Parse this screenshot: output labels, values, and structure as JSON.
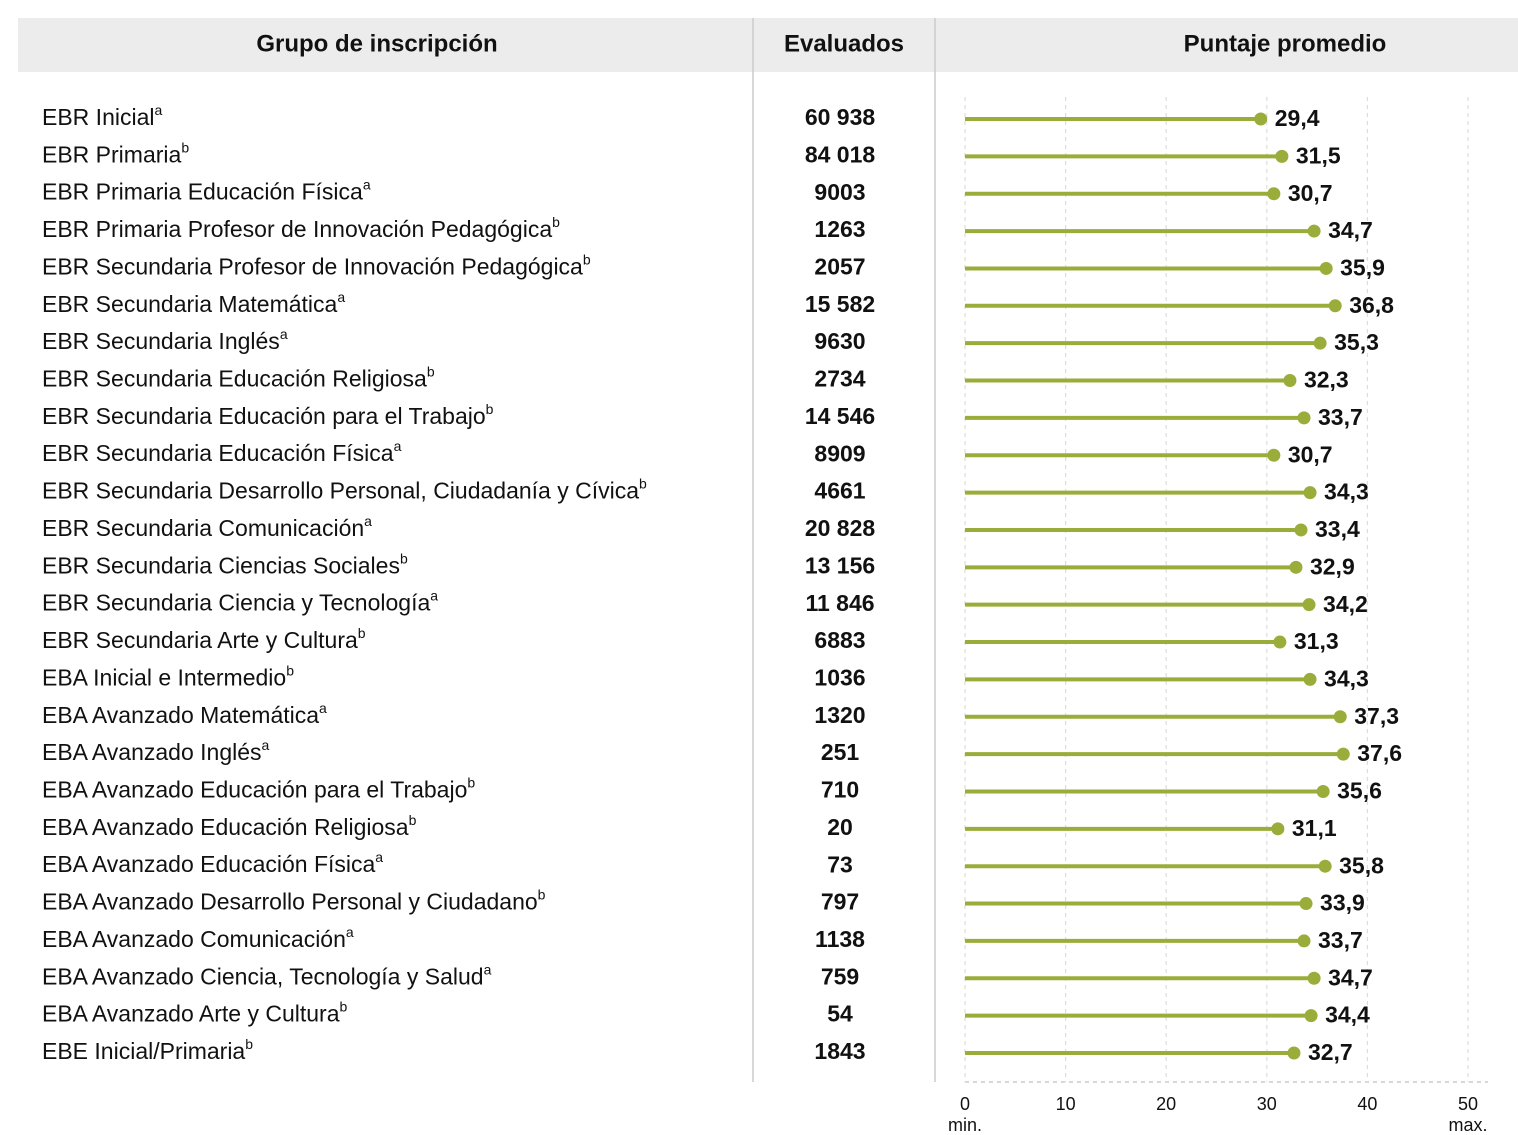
{
  "chart_data": {
    "type": "lollipop",
    "headers": [
      "Grupo de inscripción",
      "Evaluados",
      "Puntaje promedio"
    ],
    "categories": [
      "EBR Inicial",
      "EBR Primaria",
      "EBR Primaria Educación Física",
      "EBR Primaria Profesor de Innovación Pedagógica",
      "EBR Secundaria Profesor de Innovación Pedagógica",
      "EBR Secundaria Matemática",
      "EBR Secundaria Inglés",
      "EBR Secundaria Educación Religiosa",
      "EBR Secundaria Educación para el Trabajo",
      "EBR Secundaria Educación Física",
      "EBR Secundaria Desarrollo Personal, Ciudadanía y Cívica",
      "EBR Secundaria Comunicación",
      "EBR Secundaria Ciencias Sociales",
      "EBR Secundaria Ciencia y Tecnología",
      "EBR Secundaria Arte y Cultura",
      "EBA Inicial e Intermedio",
      "EBA Avanzado Matemática",
      "EBA Avanzado Inglés",
      "EBA Avanzado Educación para el Trabajo",
      "EBA Avanzado Educación Religiosa",
      "EBA Avanzado Educación Física",
      "EBA Avanzado Desarrollo Personal y Ciudadano",
      "EBA Avanzado Comunicación",
      "EBA Avanzado Ciencia, Tecnología y Salud",
      "EBA Avanzado Arte y Cultura",
      "EBE Inicial/Primaria"
    ],
    "notes": [
      "a",
      "b",
      "a",
      "b",
      "b",
      "a",
      "a",
      "b",
      "b",
      "a",
      "b",
      "a",
      "b",
      "a",
      "b",
      "b",
      "a",
      "a",
      "b",
      "b",
      "a",
      "b",
      "a",
      "a",
      "b",
      "b"
    ],
    "evaluados": [
      "60 938",
      "84 018",
      "9003",
      "1263",
      "2057",
      "15 582",
      "9630",
      "2734",
      "14 546",
      "8909",
      "4661",
      "20 828",
      "13 156",
      "11 846",
      "6883",
      "1036",
      "1320",
      "251",
      "710",
      "20",
      "73",
      "797",
      "1138",
      "759",
      "54",
      "1843"
    ],
    "values": [
      29.4,
      31.5,
      30.7,
      34.7,
      35.9,
      36.8,
      35.3,
      32.3,
      33.7,
      30.7,
      34.3,
      33.4,
      32.9,
      34.2,
      31.3,
      34.3,
      37.3,
      37.6,
      35.6,
      31.1,
      35.8,
      33.9,
      33.7,
      34.7,
      34.4,
      32.7
    ],
    "value_labels": [
      "29,4",
      "31,5",
      "30,7",
      "34,7",
      "35,9",
      "36,8",
      "35,3",
      "32,3",
      "33,7",
      "30,7",
      "34,3",
      "33,4",
      "32,9",
      "34,2",
      "31,3",
      "34,3",
      "37,3",
      "37,6",
      "35,6",
      "31,1",
      "35,8",
      "33,9",
      "33,7",
      "34,7",
      "34,4",
      "32,7"
    ],
    "color": "#9aad3a",
    "xlim": [
      0,
      50
    ],
    "xticks": [
      0,
      10,
      20,
      30,
      40,
      50
    ],
    "x_end_labels": [
      "min.",
      "max."
    ],
    "grid": true
  }
}
